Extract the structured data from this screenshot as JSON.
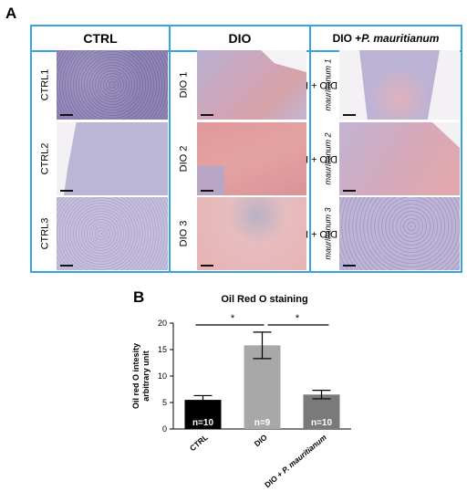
{
  "panel_a": {
    "letter": "A",
    "columns": [
      {
        "header": "CTRL",
        "header_italic": "",
        "rows": [
          {
            "label": "CTRL1",
            "label_italic": ""
          },
          {
            "label": "CTRL2",
            "label_italic": ""
          },
          {
            "label": "CTRL3",
            "label_italic": ""
          }
        ]
      },
      {
        "header": "DIO",
        "header_italic": "",
        "rows": [
          {
            "label": "DIO 1",
            "label_italic": ""
          },
          {
            "label": "DIO 2",
            "label_italic": ""
          },
          {
            "label": "DIO 3",
            "label_italic": ""
          }
        ]
      },
      {
        "header": "DIO + ",
        "header_italic": "P. mauritianum",
        "rows": [
          {
            "label": "DIO + P.",
            "label_italic": "mauritianum 1"
          },
          {
            "label": "DIO + P.",
            "label_italic": "mauritianum 2"
          },
          {
            "label": "DIO + P.",
            "label_italic": "mauritianum 3"
          }
        ]
      }
    ],
    "colors": {
      "border": "#3ba3dc",
      "stain_blue": "#b9b3d4",
      "stain_red": "#e4a3a2"
    }
  },
  "panel_b": {
    "letter": "B",
    "significance": [
      "*",
      "*"
    ],
    "chart_data": {
      "type": "bar",
      "title": "Oil Red O staining",
      "ylabel": "Oil red O intesity arbitrary unit",
      "ylabel_lines": [
        "Oil red O intesity",
        "arbitrary unit"
      ],
      "ylim": [
        0,
        20
      ],
      "yticks": [
        "0",
        "5",
        "10",
        "15",
        "20"
      ],
      "categories": [
        "CTRL",
        "DIO",
        "DIO + P. mauritianum"
      ],
      "category_lines": [
        {
          "plain": "CTRL",
          "italic": ""
        },
        {
          "plain": "DIO",
          "italic": ""
        },
        {
          "plain": "DIO + ",
          "italic": "P. mauritianum"
        }
      ],
      "values": [
        5.5,
        15.8,
        6.5
      ],
      "errors": [
        0.8,
        2.5,
        0.8
      ],
      "bar_labels": [
        "n=10",
        "n=9",
        "n=10"
      ],
      "bar_colors": [
        "#000000",
        "#a8a8a8",
        "#7a7a7a"
      ],
      "grid": false,
      "legend": "none"
    }
  }
}
